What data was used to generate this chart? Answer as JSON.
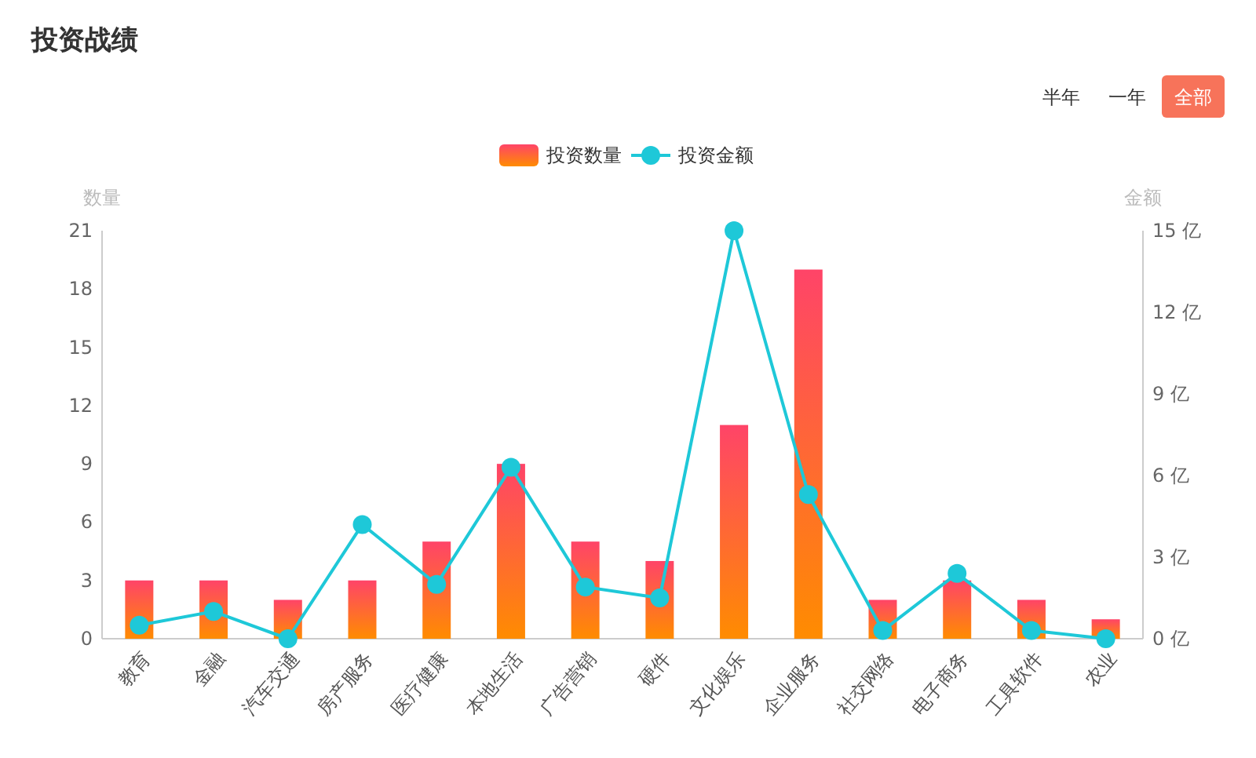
{
  "chart_data": {
    "type": "bar",
    "title": "投资战绩",
    "ylabel": "数量",
    "y2label": "金额",
    "annotations": [
      "半年",
      "一年",
      "全部"
    ],
    "categories": [
      "教育",
      "金融",
      "汽车交通",
      "房产服务",
      "医疗健康",
      "本地生活",
      "广告营销",
      "硬件",
      "文化娱乐",
      "企业服务",
      "社交网络",
      "电子商务",
      "工具软件",
      "农业"
    ],
    "series": [
      {
        "name": "投资数量",
        "type": "bar",
        "color": "#ff4468",
        "values": [
          3,
          3,
          2,
          3,
          5,
          9,
          5,
          4,
          11,
          19,
          2,
          3,
          2,
          1
        ]
      },
      {
        "name": "投资金额",
        "type": "line",
        "axis": "y2",
        "color": "#1ec8d8",
        "values": [
          0.5,
          1.0,
          0,
          4.2,
          2.0,
          6.3,
          1.9,
          1.5,
          15,
          5.3,
          0.3,
          2.4,
          0.3,
          0
        ]
      }
    ],
    "ylim": [
      0,
      21
    ],
    "yticks": [
      0,
      3,
      6,
      9,
      12,
      15,
      18,
      21
    ],
    "y2lim": [
      0,
      15
    ],
    "y2ticks": [
      {
        "value": 0,
        "label": "0 亿"
      },
      {
        "value": 3,
        "label": "3 亿"
      },
      {
        "value": 6,
        "label": "6 亿"
      },
      {
        "value": 9,
        "label": "9 亿"
      },
      {
        "value": 12,
        "label": "12 亿"
      },
      {
        "value": 15,
        "label": "15 亿"
      }
    ],
    "legend": "top",
    "marker": "circle",
    "line_style": "solid",
    "grid": false
  }
}
